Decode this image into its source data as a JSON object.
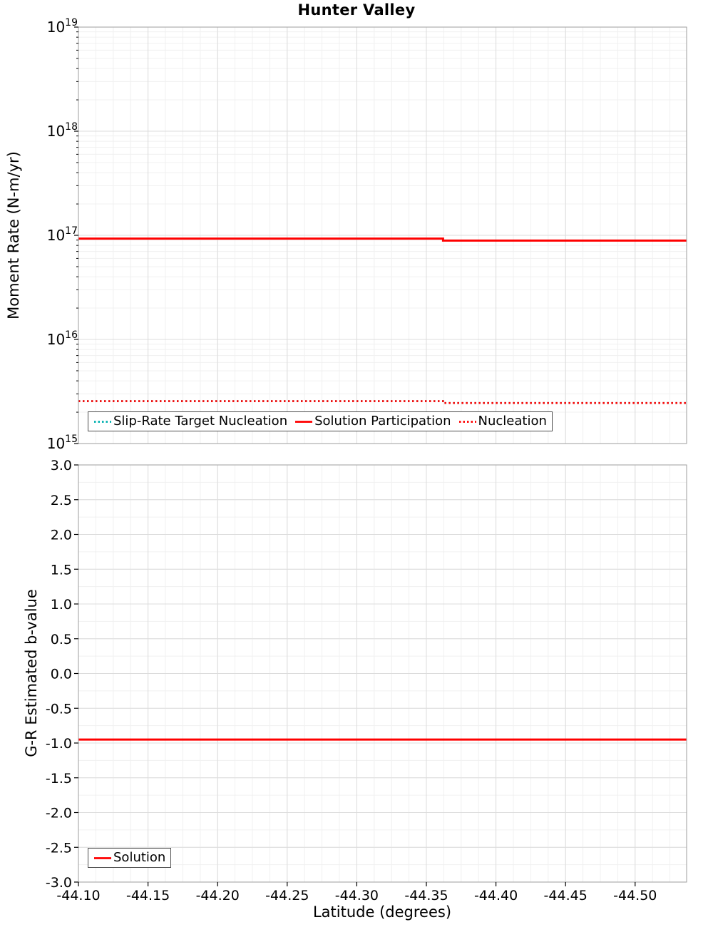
{
  "chart_data": [
    {
      "type": "line",
      "title": "Hunter Valley",
      "ylabel": "Moment Rate (N-m/yr)",
      "xlabel": "",
      "yscale": "log",
      "ylim": [
        1000000000000000.0,
        1e+19
      ],
      "xlim": [
        -44.1,
        -44.537
      ],
      "grid": true,
      "legend_position": "bottom-left",
      "x_labels_visible": false,
      "x_minor_step": 0.0125,
      "y_ticks": [
        {
          "value": 1000000000000000.0,
          "label": "10^15"
        },
        {
          "value": 1e+16,
          "label": "10^16"
        },
        {
          "value": 1e+17,
          "label": "10^17"
        },
        {
          "value": 1e+18,
          "label": "10^18"
        },
        {
          "value": 1e+19,
          "label": "10^19"
        }
      ],
      "x_ticks": [
        {
          "value": -44.1,
          "label": "-44.10"
        },
        {
          "value": -44.15,
          "label": "-44.15"
        },
        {
          "value": -44.2,
          "label": "-44.20"
        },
        {
          "value": -44.25,
          "label": "-44.25"
        },
        {
          "value": -44.3,
          "label": "-44.30"
        },
        {
          "value": -44.35,
          "label": "-44.35"
        },
        {
          "value": -44.4,
          "label": "-44.40"
        },
        {
          "value": -44.45,
          "label": "-44.45"
        },
        {
          "value": -44.5,
          "label": "-44.50"
        }
      ],
      "series": [
        {
          "name": "Slip-Rate Target Nucleation",
          "color": "#00b0b0",
          "style": "dotted",
          "x": [
            -44.1,
            -44.362,
            -44.362,
            -44.537
          ],
          "y": [
            2550000000000000.0,
            2550000000000000.0,
            2450000000000000.0,
            2450000000000000.0
          ]
        },
        {
          "name": "Solution Participation",
          "color": "#ff0000",
          "style": "solid",
          "x": [
            -44.1,
            -44.362,
            -44.362,
            -44.537
          ],
          "y": [
            9.3e+16,
            9.3e+16,
            8.9e+16,
            8.9e+16
          ]
        },
        {
          "name": "Nucleation",
          "color": "#ff0000",
          "style": "dotted",
          "x": [
            -44.1,
            -44.362,
            -44.362,
            -44.537
          ],
          "y": [
            2550000000000000.0,
            2550000000000000.0,
            2450000000000000.0,
            2450000000000000.0
          ]
        }
      ]
    },
    {
      "type": "line",
      "title": "",
      "ylabel": "G-R Estimated b-value",
      "xlabel": "Latitude (degrees)",
      "yscale": "linear",
      "ylim": [
        -3.0,
        3.0
      ],
      "xlim": [
        -44.1,
        -44.537
      ],
      "grid": true,
      "legend_position": "bottom-left",
      "x_labels_visible": true,
      "x_minor_step": 0.0125,
      "y_minor_step": 0.25,
      "y_ticks": [
        {
          "value": 3.0,
          "label": "3.0"
        },
        {
          "value": 2.5,
          "label": "2.5"
        },
        {
          "value": 2.0,
          "label": "2.0"
        },
        {
          "value": 1.5,
          "label": "1.5"
        },
        {
          "value": 1.0,
          "label": "1.0"
        },
        {
          "value": 0.5,
          "label": "0.5"
        },
        {
          "value": 0.0,
          "label": "0.0"
        },
        {
          "value": -0.5,
          "label": "-0.5"
        },
        {
          "value": -1.0,
          "label": "-1.0"
        },
        {
          "value": -1.5,
          "label": "-1.5"
        },
        {
          "value": -2.0,
          "label": "-2.0"
        },
        {
          "value": -2.5,
          "label": "-2.5"
        },
        {
          "value": -3.0,
          "label": "-3.0"
        }
      ],
      "x_ticks": [
        {
          "value": -44.1,
          "label": "-44.10"
        },
        {
          "value": -44.15,
          "label": "-44.15"
        },
        {
          "value": -44.2,
          "label": "-44.20"
        },
        {
          "value": -44.25,
          "label": "-44.25"
        },
        {
          "value": -44.3,
          "label": "-44.30"
        },
        {
          "value": -44.35,
          "label": "-44.35"
        },
        {
          "value": -44.4,
          "label": "-44.40"
        },
        {
          "value": -44.45,
          "label": "-44.45"
        },
        {
          "value": -44.5,
          "label": "-44.50"
        }
      ],
      "series": [
        {
          "name": "Solution",
          "color": "#ff0000",
          "style": "solid",
          "x": [
            -44.1,
            -44.537
          ],
          "y": [
            -0.95,
            -0.95
          ]
        }
      ]
    }
  ],
  "colors": {
    "grid_major": "#dcdcdc",
    "grid_minor": "#f0f0f0",
    "plot_border": "#9e9e9e",
    "accent_red": "#ff0000",
    "accent_teal": "#00b0b0"
  }
}
